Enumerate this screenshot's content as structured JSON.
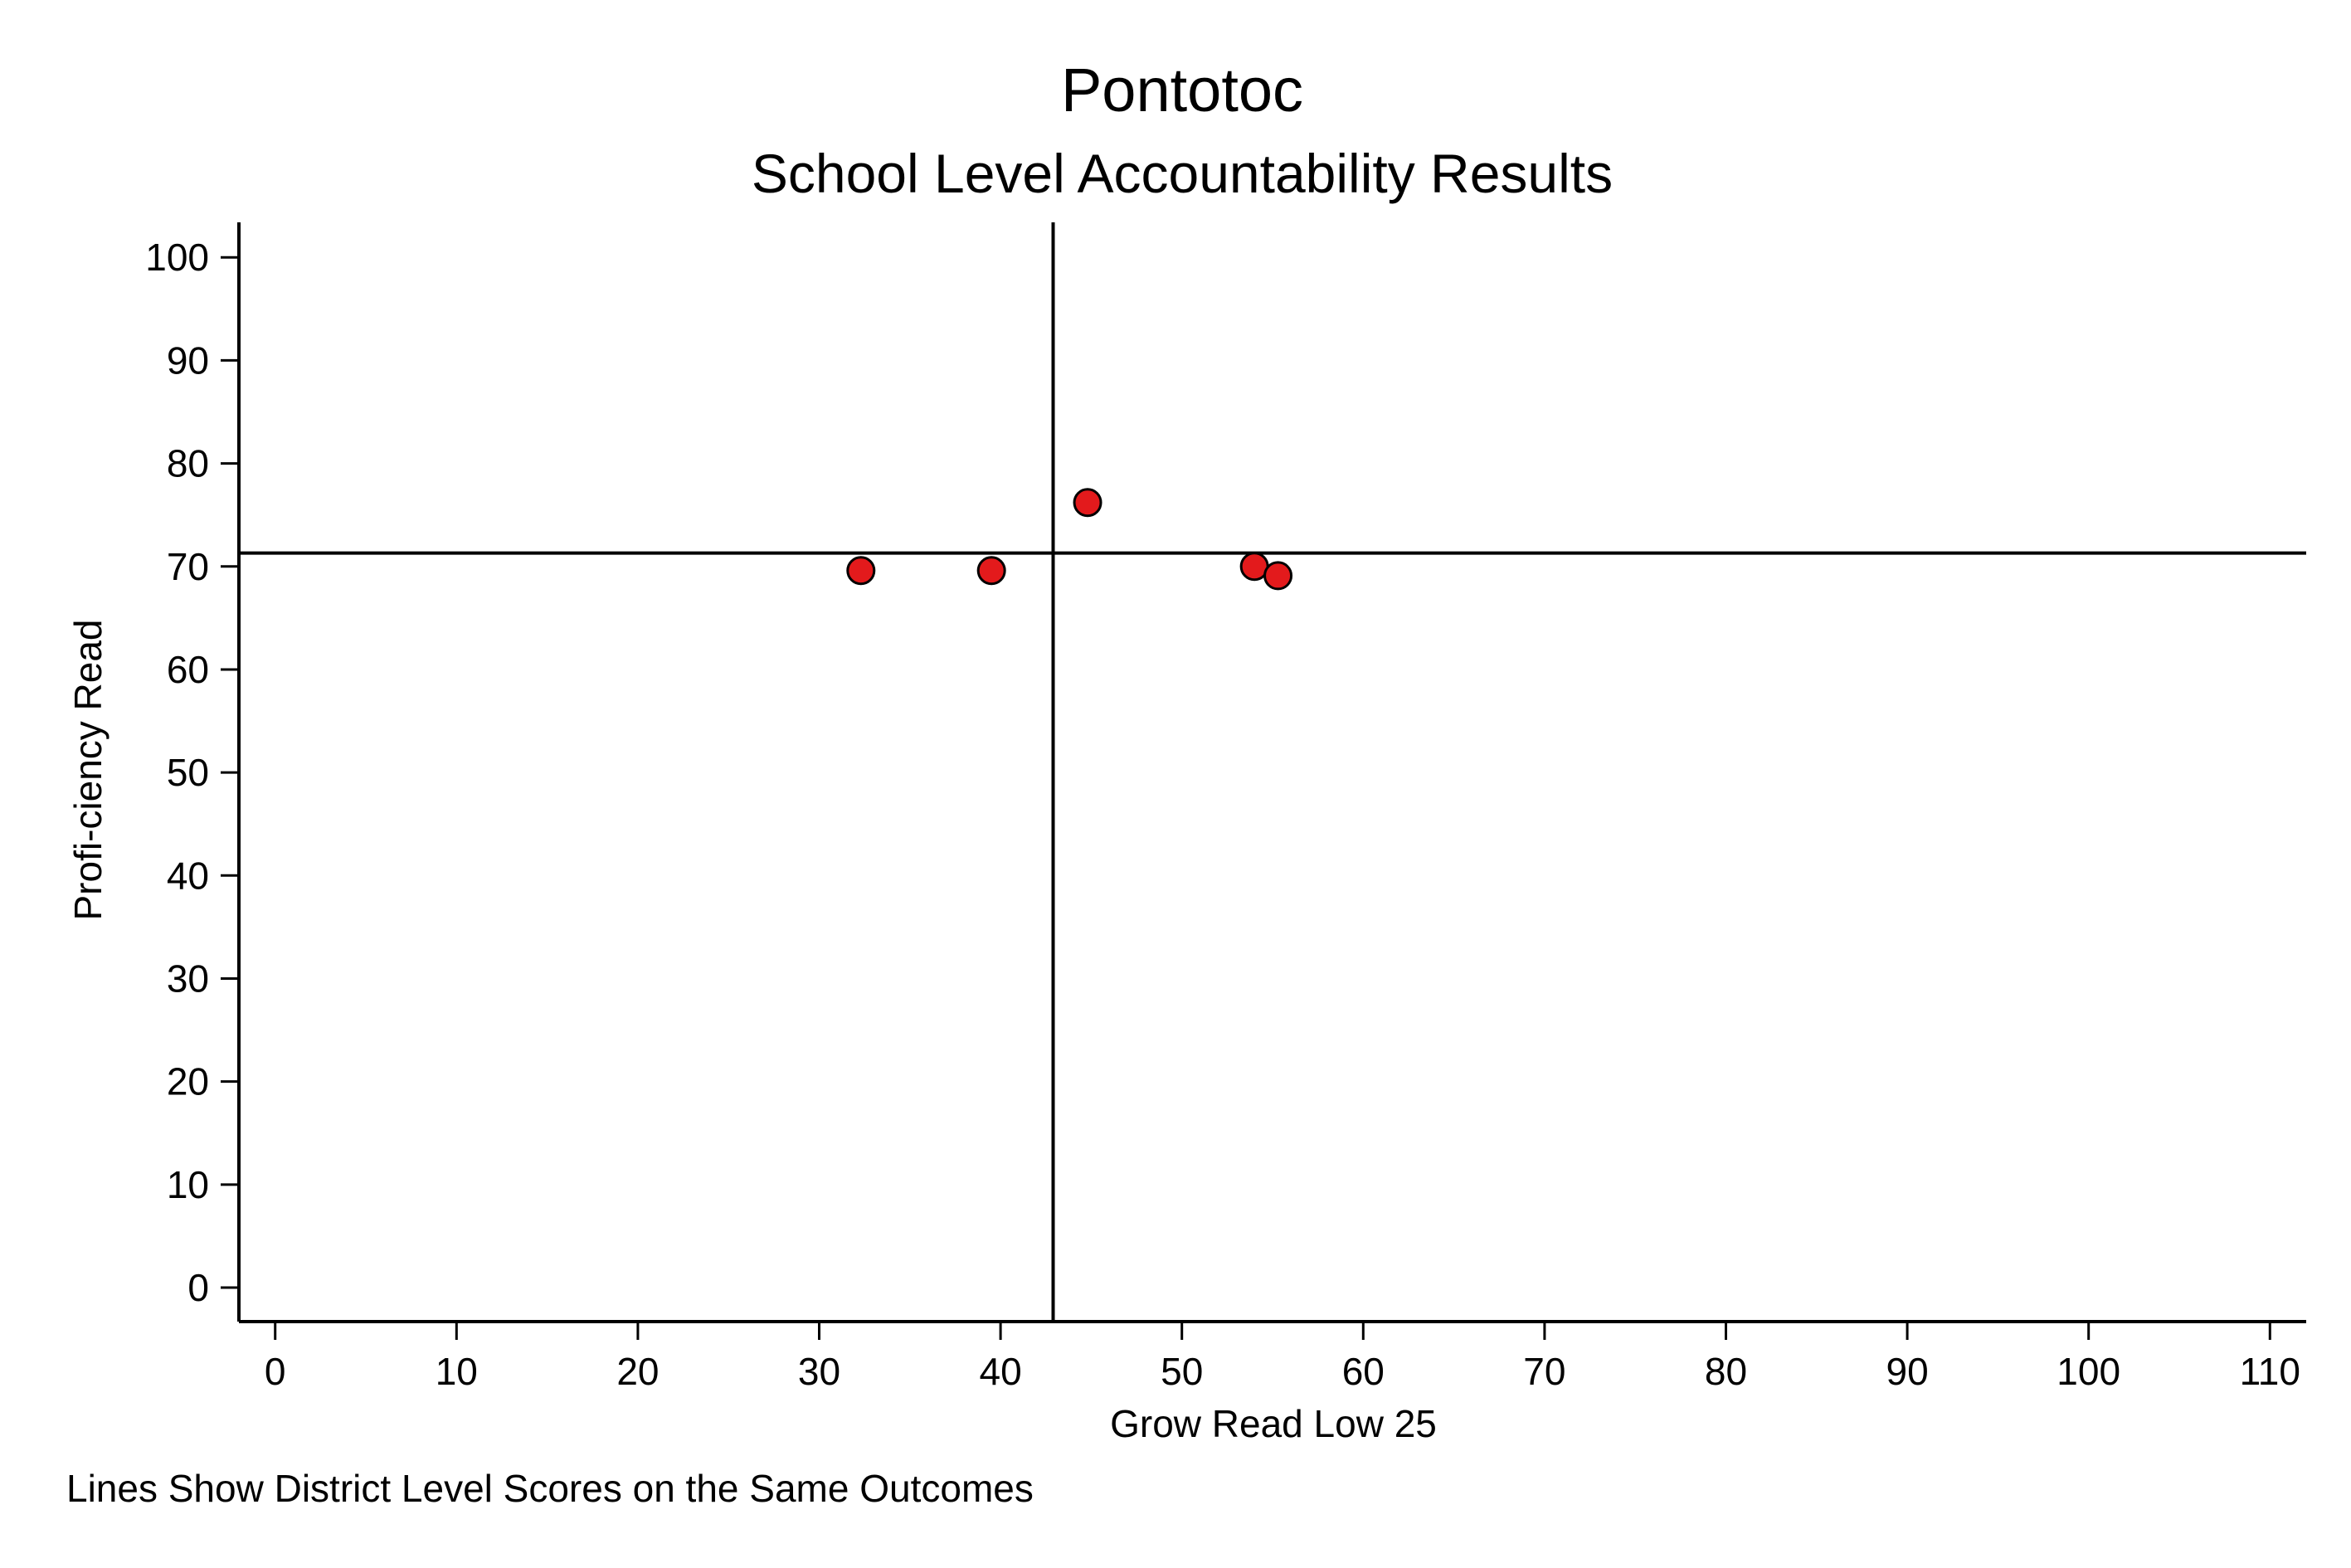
{
  "chart_data": {
    "type": "scatter",
    "title": "Pontotoc",
    "subtitle": "School Level Accountability Results",
    "xlabel": "Grow Read Low 25",
    "ylabel": "Profi-ciency Read",
    "note": "Lines Show District Level Scores on the Same Outcomes",
    "xlim": [
      -2,
      112
    ],
    "ylim": [
      -3.3,
      103.4
    ],
    "x_ticks": [
      0,
      10,
      20,
      30,
      40,
      50,
      60,
      70,
      80,
      90,
      100,
      110
    ],
    "y_ticks": [
      0,
      10,
      20,
      30,
      40,
      50,
      60,
      70,
      80,
      90,
      100
    ],
    "x_tick_labels": [
      "0",
      "10",
      "20",
      "30",
      "40",
      "50",
      "60",
      "70",
      "80",
      "90",
      "100",
      "110"
    ],
    "y_tick_labels": [
      "0",
      "10",
      "20",
      "30",
      "40",
      "50",
      "60",
      "70",
      "80",
      "90",
      "100"
    ],
    "grid": false,
    "reference_lines": {
      "x": 42.9,
      "y": 71.3
    },
    "marker_color": "#e31a1c",
    "points": [
      {
        "x": 32.3,
        "y": 69.6
      },
      {
        "x": 39.5,
        "y": 69.6
      },
      {
        "x": 44.8,
        "y": 76.2
      },
      {
        "x": 54.0,
        "y": 70.0
      },
      {
        "x": 55.3,
        "y": 69.1
      }
    ]
  }
}
